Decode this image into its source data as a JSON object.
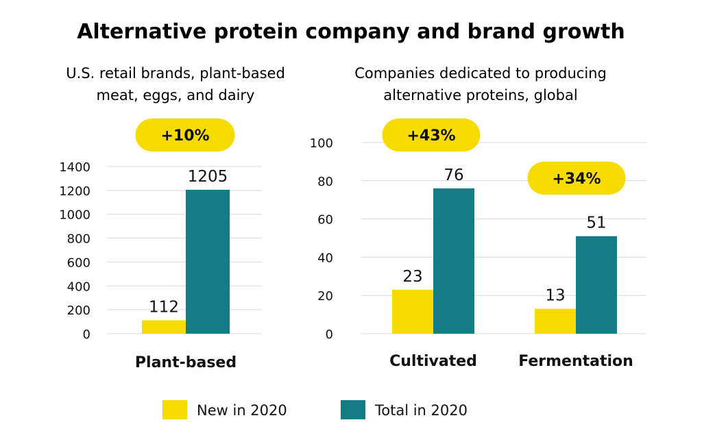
{
  "title": "Alternative protein company and brand growth",
  "colors": {
    "new": "#f5db00",
    "total": "#157c86",
    "badge": "#f5db00",
    "grid": "#d9d9d9"
  },
  "legend": {
    "new_label": "New in 2020",
    "total_label": "Total in 2020"
  },
  "chart_data": [
    {
      "type": "bar",
      "subtitle_lines": [
        "U.S. retail brands, plant-based",
        "meat, eggs, and dairy"
      ],
      "categories": [
        "Plant-based"
      ],
      "series": [
        {
          "name": "New in 2020",
          "values": [
            112
          ]
        },
        {
          "name": "Total in 2020",
          "values": [
            1205
          ]
        }
      ],
      "value_labels": {
        "new": [
          "112"
        ],
        "total": [
          "1205"
        ]
      },
      "growth_labels": [
        "+10%"
      ],
      "ylim": [
        0,
        1400
      ],
      "yticks": [
        0,
        200,
        400,
        600,
        800,
        1000,
        1200,
        1400
      ],
      "grid": true
    },
    {
      "type": "bar",
      "subtitle_lines": [
        "Companies dedicated to producing",
        "alternative proteins, global"
      ],
      "categories": [
        "Cultivated",
        "Fermentation"
      ],
      "series": [
        {
          "name": "New in 2020",
          "values": [
            23,
            13
          ]
        },
        {
          "name": "Total in 2020",
          "values": [
            76,
            51
          ]
        }
      ],
      "value_labels": {
        "new": [
          "23",
          "13"
        ],
        "total": [
          "76",
          "51"
        ]
      },
      "growth_labels": [
        "+43%",
        "+34%"
      ],
      "ylim": [
        0,
        100
      ],
      "yticks": [
        0,
        20,
        40,
        60,
        80,
        100
      ],
      "grid": true
    }
  ]
}
